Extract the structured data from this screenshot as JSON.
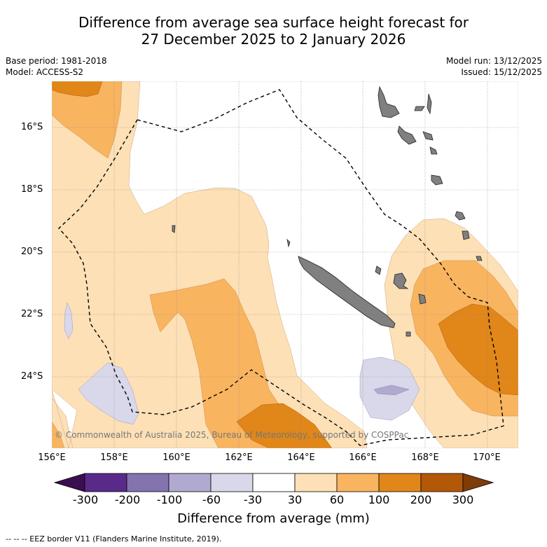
{
  "title": {
    "line1": "Difference from average sea surface height forecast for",
    "line2": "27 December 2025 to 2 January 2026"
  },
  "meta": {
    "base_period": "Base period: 1981-2018",
    "model": "Model: ACCESS-S2",
    "model_run": "Model run: 13/12/2025",
    "issued": "Issued: 15/12/2025"
  },
  "map": {
    "lat_labels": [
      "16°S",
      "18°S",
      "20°S",
      "22°S",
      "24°S"
    ],
    "lon_labels": [
      "156°E",
      "158°E",
      "160°E",
      "162°E",
      "164°E",
      "166°E",
      "168°E",
      "170°E"
    ],
    "copyright": "© Commonwealth of Australia 2025, Bureau of Meteorology, supported by COSPPac",
    "colors": {
      "land": "#808080",
      "ocean": "#ffffff",
      "grid": "#888888"
    }
  },
  "colorbar": {
    "ticks": [
      "-300",
      "-200",
      "-100",
      "-60",
      "-30",
      "30",
      "60",
      "100",
      "200",
      "300"
    ],
    "colors": [
      "#3b0f4f",
      "#5a2a8a",
      "#8373ae",
      "#b0a9d0",
      "#d8d8ea",
      "#ffffff",
      "#fde0b6",
      "#f9b460",
      "#e18618",
      "#b35807",
      "#7f3b08"
    ],
    "label": "Difference from average (mm)"
  },
  "legend": {
    "eez_text": "--  --  -- EEZ border V11 (Flanders Marine Institute, 2019)."
  }
}
